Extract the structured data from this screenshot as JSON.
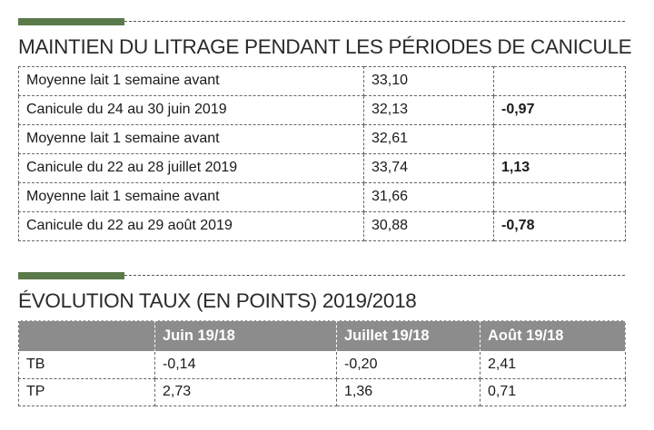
{
  "litrage": {
    "title": "MAINTIEN DU LITRAGE PENDANT LES PÉRIODES DE CANICULE",
    "rows": [
      {
        "label": "Moyenne lait 1 semaine avant",
        "value": "33,10",
        "diff": ""
      },
      {
        "label": "Canicule du 24 au 30 juin 2019",
        "value": "32,13",
        "diff": "-0,97"
      },
      {
        "label": "Moyenne lait 1 semaine avant",
        "value": "32,61",
        "diff": ""
      },
      {
        "label": "Canicule du 22 au 28 juillet 2019",
        "value": "33,74",
        "diff": "1,13"
      },
      {
        "label": "Moyenne lait 1 semaine avant",
        "value": "31,66",
        "diff": ""
      },
      {
        "label": "Canicule du 22 au 29 août 2019",
        "value": "30,88",
        "diff": "-0,78"
      }
    ]
  },
  "evolution": {
    "title": "ÉVOLUTION TAUX (EN POINTS) 2019/2018",
    "headers": [
      "",
      "Juin 19/18",
      "Juillet 19/18",
      "Août 19/18"
    ],
    "rows": [
      {
        "label": "TB",
        "values": [
          "-0,14",
          "-0,20",
          "2,41"
        ]
      },
      {
        "label": "TP",
        "values": [
          "2,73",
          "1,36",
          "0,71"
        ]
      }
    ]
  },
  "colors": {
    "accent": "#5a7a4a",
    "header_bg": "#8c8c8c"
  }
}
